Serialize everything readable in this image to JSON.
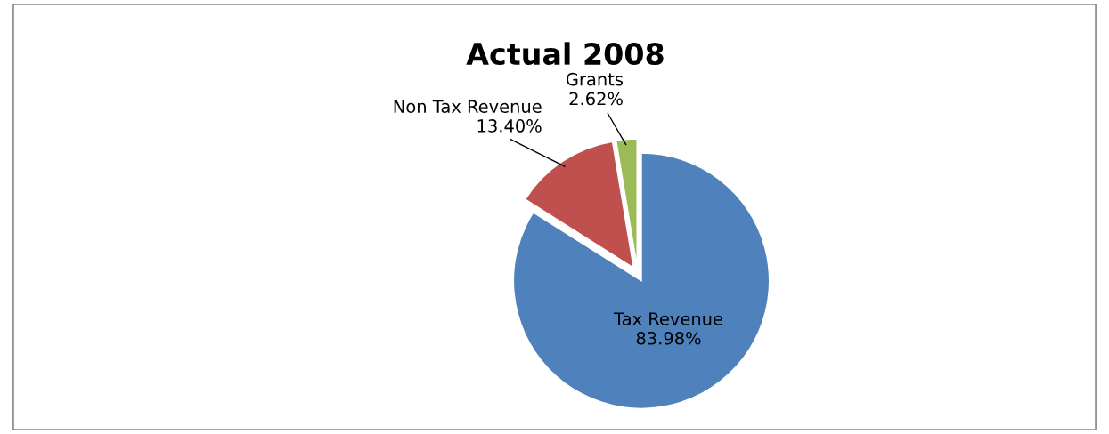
{
  "chart_data": {
    "type": "pie",
    "title": "Actual 2008",
    "categories": [
      "Tax Revenue",
      "Non Tax Revenue",
      "Grants"
    ],
    "values": [
      83.98,
      13.4,
      2.62
    ],
    "value_labels": [
      "83.98%",
      "13.40%",
      "2.62%"
    ],
    "colors": [
      "#4f81bd",
      "#c0504d",
      "#9bbb59"
    ]
  }
}
